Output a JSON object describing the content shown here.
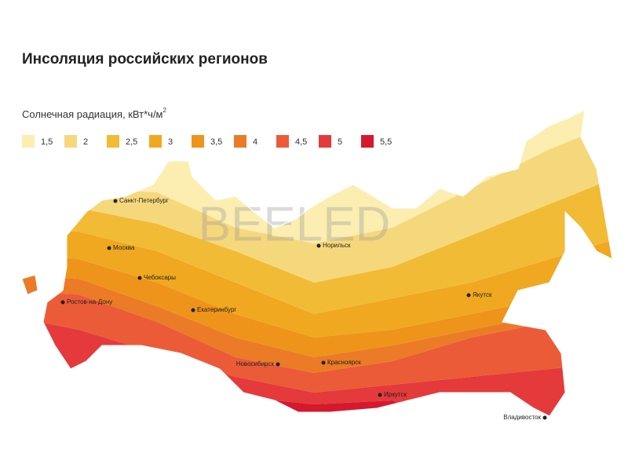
{
  "title": "Инсоляция российских регионов",
  "legend": {
    "label": "Солнечная радиация, кВт*ч/м",
    "unit_superscript": "2",
    "values": [
      {
        "value": 1.5,
        "label": "1,5"
      },
      2,
      {
        "value": 2.5,
        "label": "2,5"
      },
      3,
      {
        "value": 3.5,
        "label": "3,5"
      },
      4,
      {
        "value": 4.5,
        "label": "4,5"
      },
      5,
      {
        "value": 5.5,
        "label": "5,5"
      }
    ],
    "colors": [
      "#fbeeb0",
      "#f6d87c",
      "#f2bb35",
      "#f0a820",
      "#ee941a",
      "#eb7b26",
      "#ec5b37",
      "#e43a3b",
      "#d6182e"
    ]
  },
  "cities": [
    "Санкт-Петербург",
    "Москва",
    "Чебоксары",
    "Ростов-на-Дону",
    "Екатеринбург",
    "Новосибирск",
    "Красноярск",
    "Иркутск",
    "Норильск",
    "Якутск",
    "Владивосток"
  ],
  "watermark": "BEELED"
}
